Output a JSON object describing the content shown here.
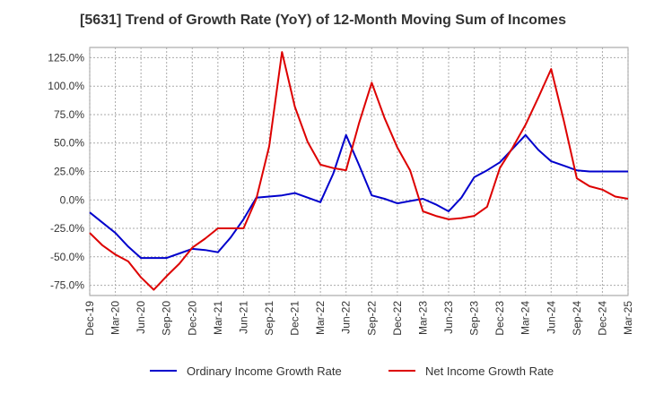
{
  "chart_data": {
    "type": "line",
    "title": "[5631]  Trend of Growth Rate (YoY) of 12-Month Moving Sum of Incomes",
    "x_tick_labels": [
      "Dec-19",
      "Mar-20",
      "Jun-20",
      "Sep-20",
      "Dec-20",
      "Mar-21",
      "Jun-21",
      "Sep-21",
      "Dec-21",
      "Mar-22",
      "Jun-22",
      "Sep-22",
      "Dec-22",
      "Mar-23",
      "Jun-23",
      "Sep-23",
      "Dec-23",
      "Mar-24",
      "Jun-24",
      "Sep-24",
      "Dec-24",
      "Mar-25"
    ],
    "y_tick_labels": [
      "125.0%",
      "100.0%",
      "75.0%",
      "50.0%",
      "25.0%",
      "0.0%",
      "-25.0%",
      "-50.0%",
      "-75.0%"
    ],
    "y_ticks": [
      125,
      100,
      75,
      50,
      25,
      0,
      -25,
      -50,
      -75
    ],
    "ylim": [
      -84,
      134
    ],
    "grid": true,
    "legend_position": "bottom",
    "series": [
      {
        "name": "Ordinary Income Growth Rate",
        "color": "#0000cc",
        "values": [
          -11,
          -20,
          -29,
          -41,
          -51,
          -51,
          -51,
          -47,
          -43,
          -44,
          -46,
          -33,
          -17,
          2,
          3,
          4,
          6,
          2,
          -2,
          23,
          57,
          31,
          4,
          1,
          -3,
          -1,
          1,
          -4,
          -10,
          2,
          20,
          26,
          33,
          45,
          57,
          44,
          34,
          30,
          26,
          25,
          25,
          25,
          25
        ]
      },
      {
        "name": "Net Income Growth Rate",
        "color": "#dd0000",
        "values": [
          -29,
          -40,
          -48,
          -54,
          -68,
          -79,
          -67,
          -56,
          -42,
          -34,
          -25,
          -25,
          -25,
          1,
          47,
          130,
          82,
          51,
          31,
          28,
          26,
          67,
          103,
          72,
          46,
          26,
          -10,
          -14,
          -17,
          -16,
          -14,
          -6,
          28,
          46,
          66,
          90,
          115,
          69,
          19,
          12,
          9,
          3,
          1
        ]
      }
    ]
  }
}
